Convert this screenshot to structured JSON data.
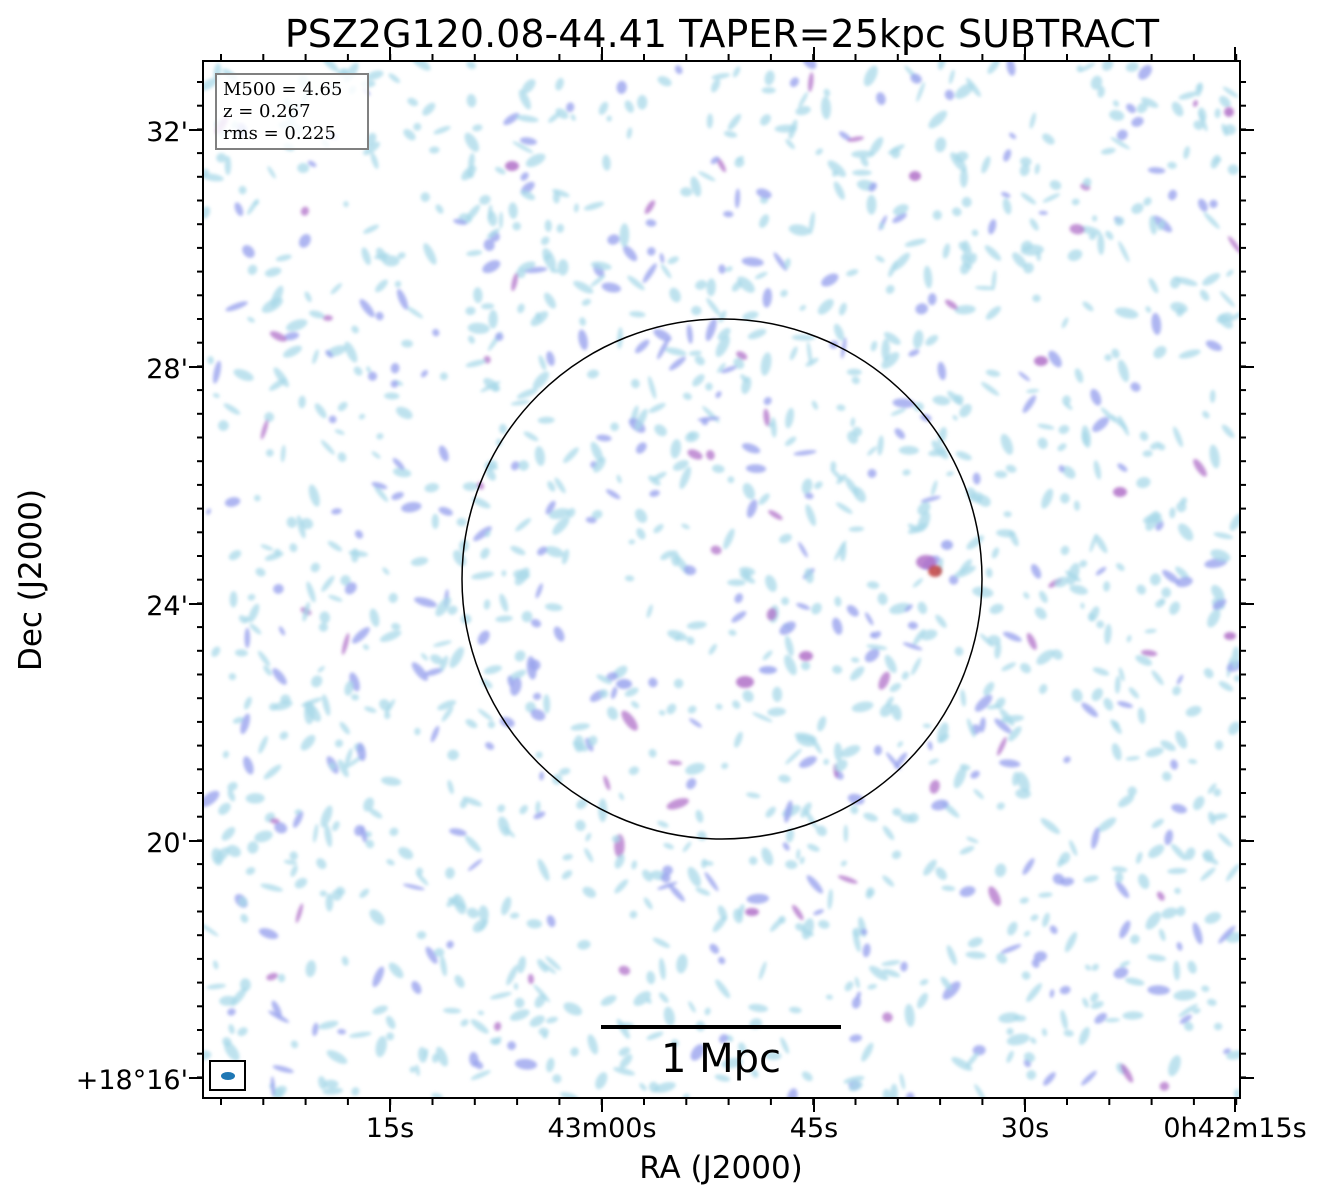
{
  "title": "PSZ2G120.08-44.41 TAPER=25kpc SUBTRACT",
  "axes": {
    "xlabel": "RA (J2000)",
    "ylabel": "Dec (J2000)",
    "x_ticks": [
      "15s",
      "43m00s",
      "45s",
      "30s",
      "0h42m15s"
    ],
    "y_ticks": [
      "32'",
      "28'",
      "24'",
      "20'",
      "+18°16'"
    ]
  },
  "info_box": {
    "line1": "M500 = 4.65",
    "line2": "z = 0.267",
    "line3": "rms = 0.225"
  },
  "scale_bar": {
    "label": "1 Mpc"
  },
  "colors": {
    "faint_emission": "#a8d8e8",
    "medium_emission": "#9aa4ee",
    "strong_emission": "#b070c8",
    "peak_emission": "#c04040",
    "circle": "#000000",
    "beam": "#1f77b4"
  }
}
